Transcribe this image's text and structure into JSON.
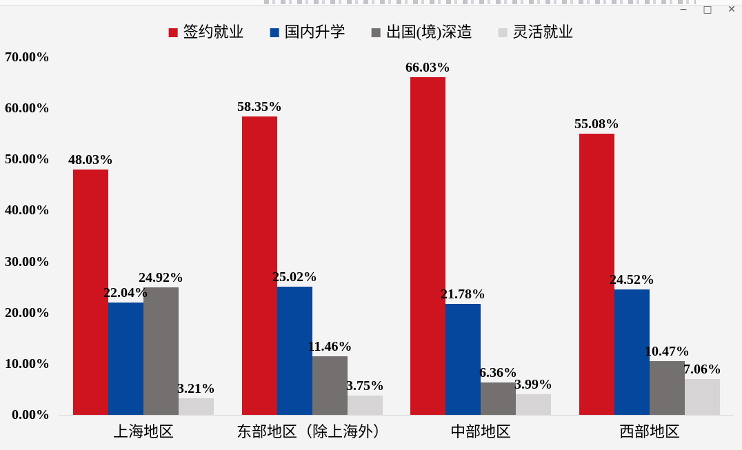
{
  "window": {
    "controls": {
      "minimize": "−",
      "maximize": "□",
      "close": "✕"
    }
  },
  "chart_data": {
    "type": "bar",
    "categories": [
      "上海地区",
      "东部地区（除上海外）",
      "中部地区",
      "西部地区"
    ],
    "series": [
      {
        "name": "签约就业",
        "color": "#CE141F",
        "values": [
          48.03,
          58.35,
          66.03,
          55.08
        ]
      },
      {
        "name": "国内升学",
        "color": "#04479C",
        "values": [
          22.04,
          25.02,
          21.78,
          24.52
        ]
      },
      {
        "name": "出国(境)深造",
        "color": "#757070",
        "values": [
          24.92,
          11.46,
          6.36,
          10.47
        ]
      },
      {
        "name": "灵活就业",
        "color": "#D6D4D4",
        "values": [
          3.21,
          3.75,
          3.99,
          7.06
        ]
      }
    ],
    "data_labels": [
      [
        "48.03%",
        "58.35%",
        "66.03%",
        "55.08%"
      ],
      [
        "22.04%",
        "25.02%",
        "21.78%",
        "24.52%"
      ],
      [
        "24.92%",
        "11.46%",
        "6.36%",
        "10.47%"
      ],
      [
        "3.21%",
        "3.75%",
        "3.99%",
        "7.06%"
      ]
    ],
    "title": "",
    "xlabel": "",
    "ylabel": "",
    "ylim": [
      0,
      70
    ],
    "yticks": [
      "0.00%",
      "10.00%",
      "20.00%",
      "30.00%",
      "40.00%",
      "50.00%",
      "60.00%",
      "70.00%"
    ],
    "grid": false,
    "legend_position": "top",
    "background_color": "#F4F4F4",
    "axis_line_color": "#D9D9D9"
  }
}
